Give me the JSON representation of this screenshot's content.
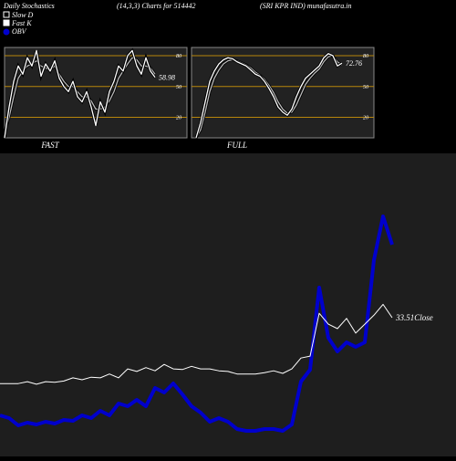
{
  "header": {
    "title": "Daily Stochastics",
    "subtitle": "(14,3,3) Charts for 514442",
    "source": "(SRI KPR IND) munafasutra.in"
  },
  "legend": [
    {
      "name": "Slow  D",
      "color": "#ffffff"
    },
    {
      "name": "Fast K",
      "color": "#ffffff"
    },
    {
      "name": "OBV",
      "color": "#0000cc"
    }
  ],
  "chart_data": [
    {
      "type": "line",
      "title": "FAST",
      "ylim": [
        0,
        88
      ],
      "yticks": [
        80,
        50,
        20
      ],
      "grid_color": "#b8860b",
      "series": [
        {
          "name": "Fast K",
          "color": "#ffffff",
          "values": [
            0,
            30,
            55,
            70,
            62,
            78,
            70,
            85,
            60,
            72,
            65,
            75,
            58,
            50,
            45,
            55,
            40,
            35,
            45,
            30,
            12,
            35,
            25,
            45,
            55,
            70,
            65,
            80,
            85,
            70,
            62,
            78,
            65,
            58.98
          ]
        },
        {
          "name": "Slow D",
          "color": "#bbbbbb",
          "values": [
            5,
            20,
            40,
            58,
            65,
            70,
            72,
            75,
            70,
            68,
            66,
            70,
            62,
            55,
            50,
            50,
            45,
            40,
            40,
            36,
            28,
            28,
            30,
            36,
            45,
            58,
            65,
            72,
            78,
            76,
            70,
            70,
            68,
            62
          ]
        }
      ]
    },
    {
      "type": "line",
      "title": "FULL",
      "ylim": [
        0,
        88
      ],
      "yticks": [
        80,
        50,
        20
      ],
      "grid_color": "#b8860b",
      "series": [
        {
          "name": "Fast K",
          "color": "#ffffff",
          "values": [
            0,
            15,
            35,
            55,
            65,
            72,
            76,
            78,
            77,
            74,
            72,
            70,
            66,
            62,
            60,
            55,
            48,
            40,
            30,
            25,
            22,
            28,
            40,
            50,
            58,
            62,
            66,
            70,
            78,
            82,
            80,
            70,
            72.76
          ]
        },
        {
          "name": "Slow D",
          "color": "#bbbbbb",
          "values": [
            0,
            8,
            25,
            45,
            58,
            66,
            72,
            75,
            76,
            75,
            73,
            71,
            68,
            64,
            61,
            57,
            51,
            44,
            35,
            28,
            24,
            25,
            32,
            42,
            52,
            58,
            63,
            67,
            74,
            79,
            80,
            74,
            71
          ]
        }
      ]
    },
    {
      "type": "line",
      "annotation": "33.51Close",
      "ylim": [
        11.8,
        58.94
      ],
      "y2lim": [
        0,
        330
      ],
      "series": [
        {
          "name": "Close",
          "color": "#ffffff",
          "values": [
            23.2,
            23.2,
            23.2,
            23.5,
            23.1,
            23.5,
            23.4,
            23.6,
            24.1,
            23.8,
            24.2,
            24.1,
            24.7,
            24.1,
            25.5,
            25.1,
            25.7,
            25.2,
            26.2,
            25.5,
            25.4,
            25.9,
            25.5,
            25.5,
            25.2,
            25.1,
            24.7,
            24.7,
            24.7,
            24.9,
            25.2,
            24.8,
            25.5,
            27.2,
            27.5,
            34.2,
            32.5,
            31.8,
            33.4,
            31.1,
            32.5,
            33.9,
            35.6,
            33.51
          ]
        },
        {
          "name": "OBV",
          "color": "#0000cc",
          "axis": "y2",
          "values": [
            45,
            42,
            34,
            37,
            35,
            38,
            36,
            40,
            39,
            45,
            42,
            50,
            45,
            58,
            55,
            62,
            55,
            75,
            70,
            80,
            68,
            55,
            48,
            38,
            42,
            38,
            30,
            28,
            28,
            30,
            30,
            28,
            35,
            82,
            95,
            185,
            130,
            115,
            125,
            120,
            125,
            215,
            263,
            232
          ]
        }
      ]
    }
  ]
}
